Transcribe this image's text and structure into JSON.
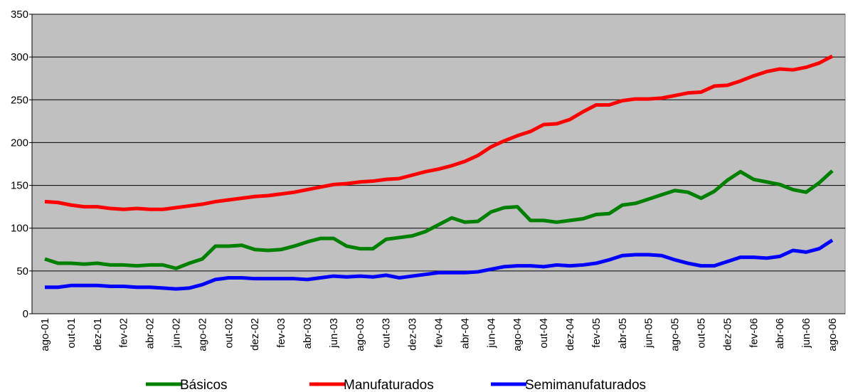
{
  "chart_data": {
    "type": "line",
    "categories": [
      "ago-01",
      null,
      "out-01",
      null,
      "dez-01",
      null,
      "fev-02",
      null,
      "abr-02",
      null,
      "jun-02",
      null,
      "ago-02",
      null,
      "out-02",
      null,
      "dez-02",
      null,
      "fev-03",
      null,
      "abr-03",
      null,
      "jun-03",
      null,
      "ago-03",
      null,
      "out-03",
      null,
      "dez-03",
      null,
      "fev-04",
      null,
      "abr-04",
      null,
      "jun-04",
      null,
      "ago-04",
      null,
      "out-04",
      null,
      "dez-04",
      null,
      "fev-05",
      null,
      "abr-05",
      null,
      "jun-05",
      null,
      "ago-05",
      null,
      "out-05",
      null,
      "dez-05",
      null,
      "fev-06",
      null,
      "abr-06",
      null,
      "jun-06",
      null,
      "ago-06"
    ],
    "series": [
      {
        "name": "Básicos",
        "color": "#008000",
        "values": [
          64,
          59,
          59,
          58,
          59,
          57,
          57,
          56,
          57,
          57,
          53,
          59,
          64,
          79,
          79,
          80,
          75,
          74,
          75,
          79,
          84,
          88,
          88,
          79,
          76,
          76,
          87,
          89,
          91,
          96,
          104,
          112,
          107,
          108,
          119,
          124,
          125,
          109,
          109,
          107,
          109,
          111,
          116,
          117,
          127,
          129,
          134,
          139,
          144,
          142,
          135,
          143,
          156,
          166,
          157,
          154,
          151,
          145,
          142,
          153,
          167
        ]
      },
      {
        "name": "Manufaturados",
        "color": "#ff0000",
        "values": [
          131,
          130,
          127,
          125,
          125,
          123,
          122,
          123,
          122,
          122,
          124,
          126,
          128,
          131,
          133,
          135,
          137,
          138,
          140,
          142,
          145,
          148,
          151,
          152,
          154,
          155,
          157,
          158,
          162,
          166,
          169,
          173,
          178,
          185,
          195,
          202,
          208,
          213,
          221,
          222,
          227,
          236,
          244,
          244,
          249,
          251,
          251,
          252,
          255,
          258,
          259,
          266,
          267,
          272,
          278,
          283,
          286,
          285,
          288,
          293,
          301
        ]
      },
      {
        "name": "Semimanufaturados",
        "color": "#0000ff",
        "values": [
          31,
          31,
          33,
          33,
          33,
          32,
          32,
          31,
          31,
          30,
          29,
          30,
          34,
          40,
          42,
          42,
          41,
          41,
          41,
          41,
          40,
          42,
          44,
          43,
          44,
          43,
          45,
          42,
          44,
          46,
          48,
          48,
          48,
          49,
          52,
          55,
          56,
          56,
          55,
          57,
          56,
          57,
          59,
          63,
          68,
          69,
          69,
          68,
          63,
          59,
          56,
          56,
          61,
          66,
          66,
          65,
          67,
          74,
          72,
          76,
          86
        ]
      }
    ],
    "ylim": [
      0,
      350
    ],
    "yticks": [
      0,
      50,
      100,
      150,
      200,
      250,
      300,
      350
    ],
    "grid": true,
    "legend": "bottom",
    "plot_background": "#c0c0c0"
  }
}
